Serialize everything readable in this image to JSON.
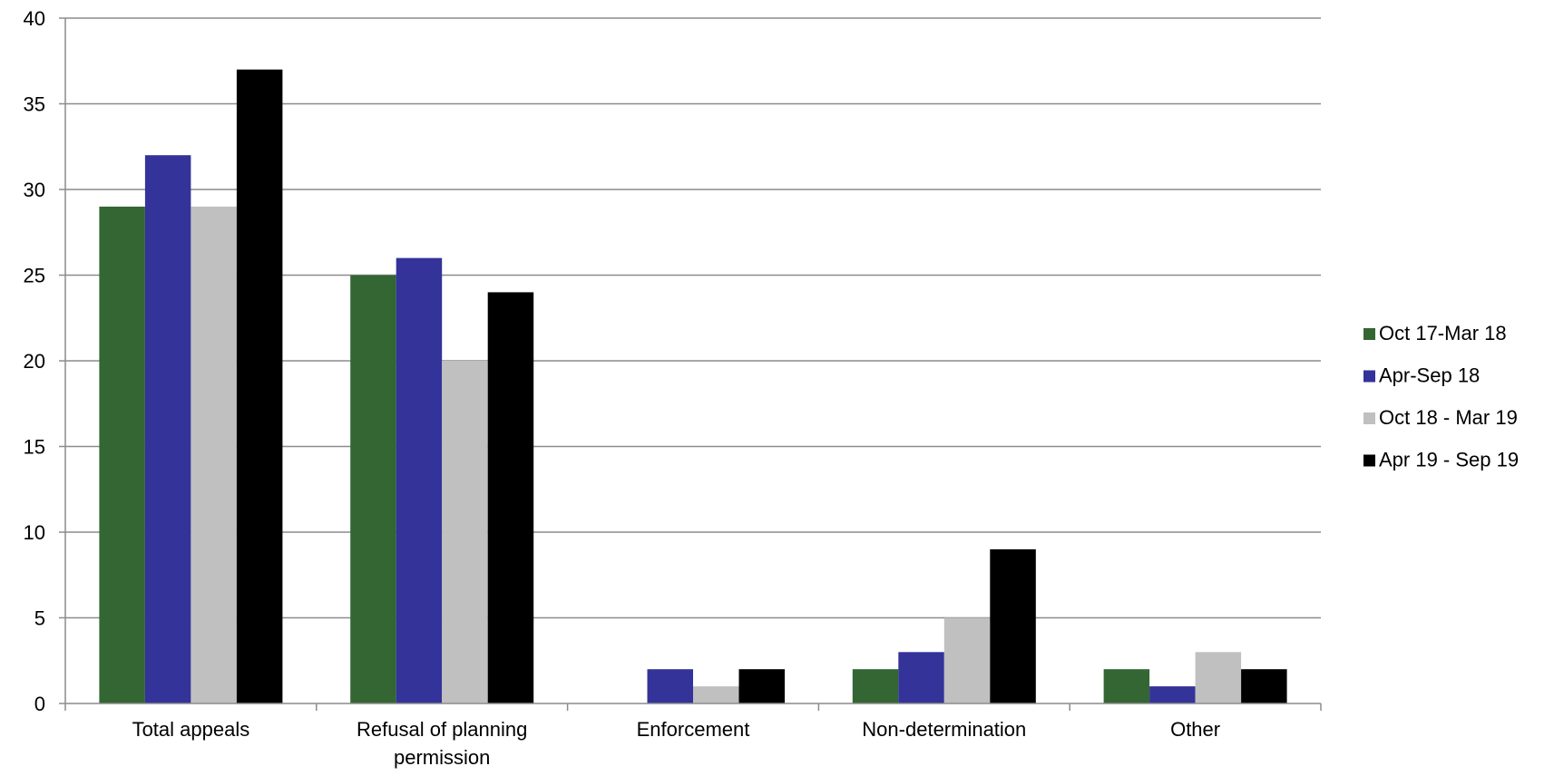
{
  "chart_data": {
    "type": "bar",
    "title": "",
    "xlabel": "",
    "ylabel": "",
    "ylim": [
      0,
      40
    ],
    "yticks": [
      0,
      5,
      10,
      15,
      20,
      25,
      30,
      35,
      40
    ],
    "grid": true,
    "legend_position": "right",
    "categories": [
      [
        "Total appeals"
      ],
      [
        "Refusal of planning",
        "permission"
      ],
      [
        "Enforcement"
      ],
      [
        "Non-determination"
      ],
      [
        "Other"
      ]
    ],
    "series": [
      {
        "name": "Oct 17-Mar 18",
        "color": "#336633",
        "values": [
          29,
          25,
          0,
          2,
          2
        ]
      },
      {
        "name": "Apr-Sep 18",
        "color": "#333399",
        "values": [
          32,
          26,
          2,
          3,
          1
        ]
      },
      {
        "name": "Oct 18 - Mar 19",
        "color": "#c0c0c0",
        "values": [
          29,
          20,
          1,
          5,
          3
        ]
      },
      {
        "name": "Apr 19 - Sep 19",
        "color": "#000000",
        "values": [
          37,
          24,
          2,
          9,
          2
        ]
      }
    ]
  }
}
